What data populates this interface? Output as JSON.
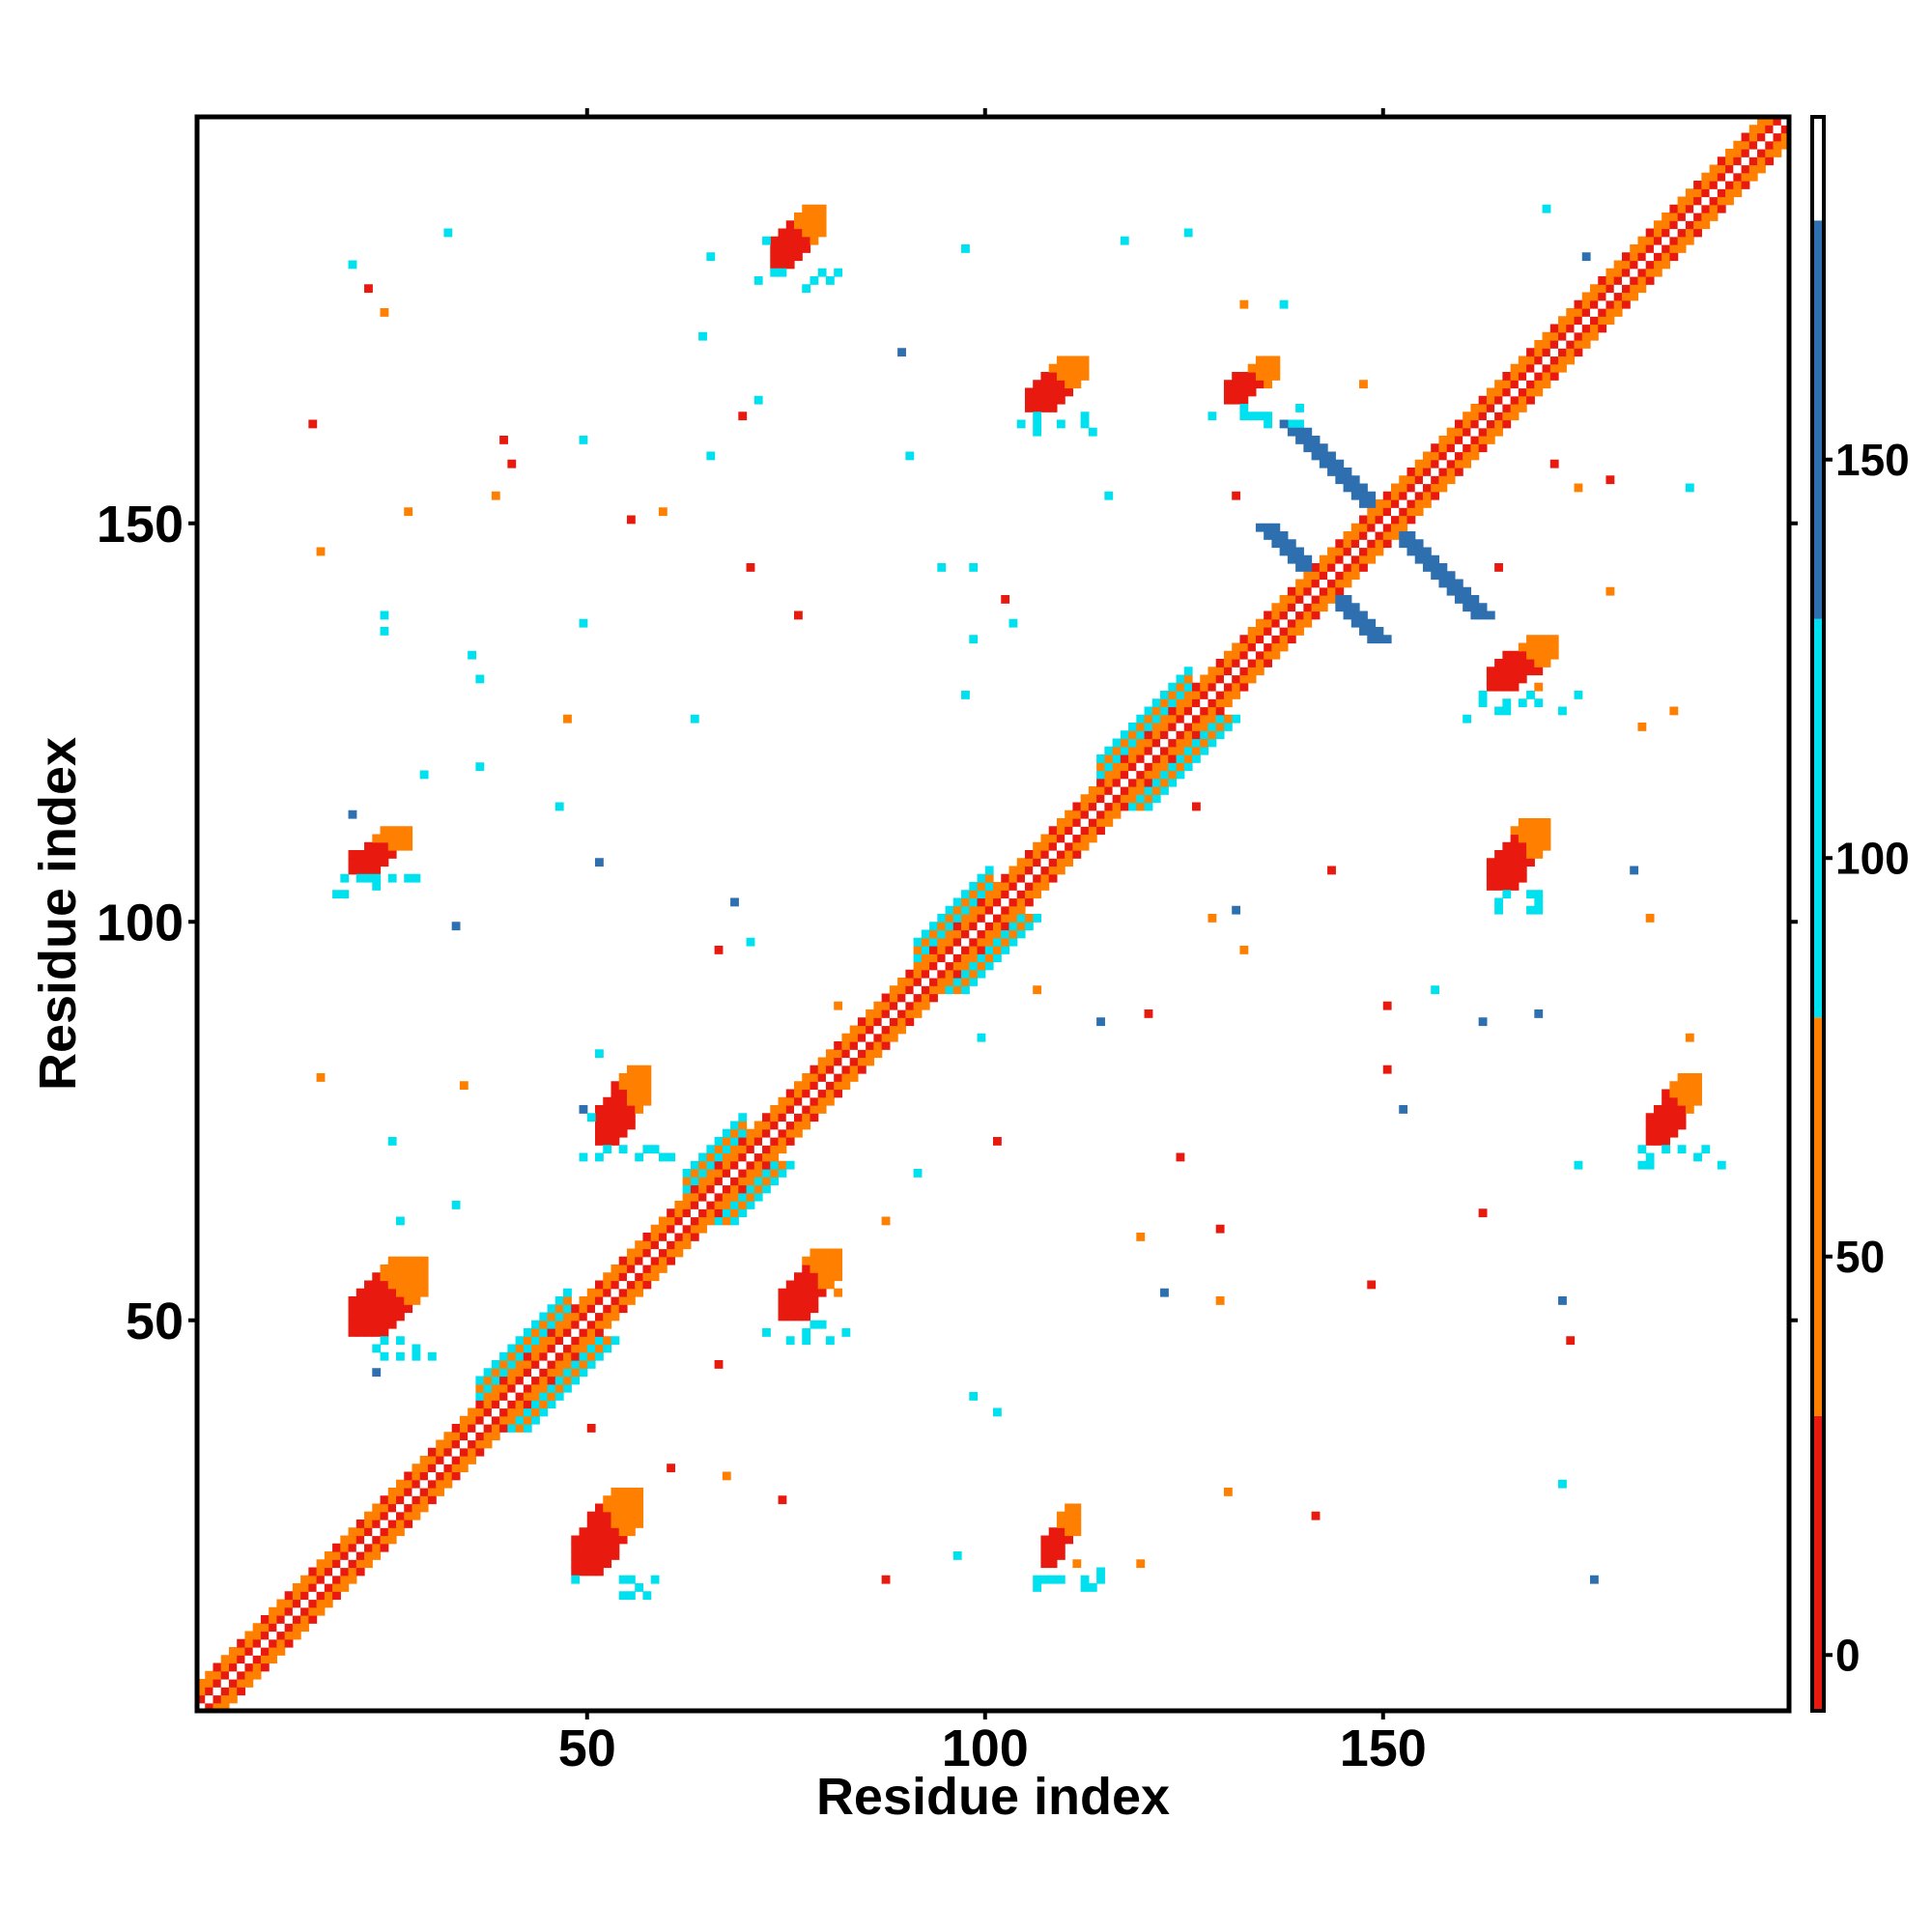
{
  "chart_data": {
    "type": "heatmap",
    "title": "",
    "xlabel": "Residue index",
    "ylabel": "Residue index",
    "xlim": [
      1,
      201
    ],
    "ylim": [
      1,
      201
    ],
    "x_ticks": [
      50,
      100,
      150
    ],
    "y_ticks": [
      50,
      100,
      150
    ],
    "colorbar": {
      "range": [
        -7,
        193
      ],
      "ticks": [
        0,
        50,
        100,
        150
      ],
      "bins": [
        {
          "from": -7,
          "to": 30,
          "color": "#e8190e"
        },
        {
          "from": 30,
          "to": 80,
          "color": "#ff7f00"
        },
        {
          "from": 80,
          "to": 130,
          "color": "#00e1f0"
        },
        {
          "from": 130,
          "to": 180,
          "color": "#2e6fb0"
        },
        {
          "from": 180,
          "to": 193,
          "color": "#ffffff"
        }
      ]
    },
    "features": [
      {
        "kind": "diagonal-band",
        "from": 1,
        "to": 201
      },
      {
        "kind": "contact-patch",
        "x": [
          48,
          56
        ],
        "y": [
          18,
          28
        ]
      },
      {
        "kind": "contact-patch",
        "x": [
          107,
          111
        ],
        "y": [
          19,
          26
        ]
      },
      {
        "kind": "contact-patch",
        "x": [
          20,
          29
        ],
        "y": [
          48,
          57
        ]
      },
      {
        "kind": "contact-patch",
        "x": [
          74,
          81
        ],
        "y": [
          50,
          58
        ]
      },
      {
        "kind": "contact-patch",
        "x": [
          51,
          57
        ],
        "y": [
          72,
          81
        ]
      },
      {
        "kind": "contact-patch",
        "x": [
          20,
          27
        ],
        "y": [
          106,
          111
        ]
      },
      {
        "kind": "contact-patch",
        "x": [
          163,
          170
        ],
        "y": [
          104,
          112
        ]
      },
      {
        "kind": "contact-patch",
        "x": [
          163,
          171
        ],
        "y": [
          129,
          135
        ]
      },
      {
        "kind": "contact-patch",
        "x": [
          183,
          189
        ],
        "y": [
          72,
          80
        ]
      },
      {
        "kind": "contact-patch",
        "x": [
          105,
          112
        ],
        "y": [
          164,
          170
        ]
      },
      {
        "kind": "contact-patch",
        "x": [
          130,
          136
        ],
        "y": [
          165,
          170
        ]
      },
      {
        "kind": "contact-patch",
        "x": [
          73,
          79
        ],
        "y": [
          182,
          189
        ]
      },
      {
        "kind": "cross",
        "center": [
          150,
          150
        ],
        "half_size": 12
      },
      {
        "kind": "cross",
        "center": [
          142,
          142
        ],
        "half_size": 7
      }
    ]
  }
}
